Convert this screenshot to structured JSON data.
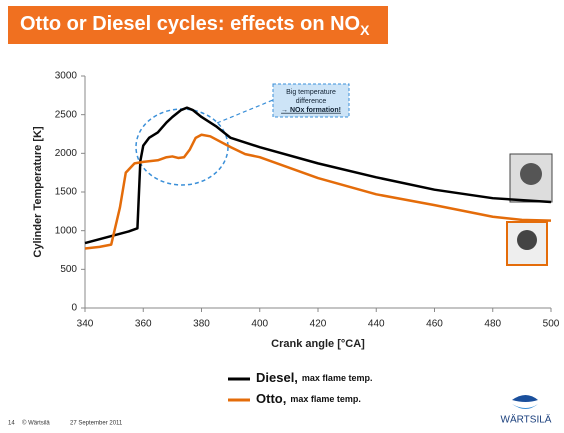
{
  "chart_data": {
    "type": "line",
    "title": "Otto or Diesel cycles: effects on NO",
    "title_subscript": "X",
    "xlabel": "Crank angle [°CA]",
    "ylabel": "Cylinder Temperature [K]",
    "xlim": [
      340,
      500
    ],
    "ylim": [
      0,
      3000
    ],
    "xticks": [
      340,
      360,
      380,
      400,
      420,
      440,
      460,
      480,
      500
    ],
    "yticks": [
      0,
      500,
      1000,
      1500,
      2000,
      2500,
      3000
    ],
    "grid": false,
    "series": [
      {
        "name": "Diesel,",
        "note": "max flame temp.",
        "color": "#000000",
        "x": [
          340,
          345,
          350,
          355,
          358,
          359,
          360,
          362,
          365,
          368,
          370,
          373,
          375,
          377,
          380,
          385,
          390,
          400,
          420,
          440,
          460,
          480,
          500
        ],
        "values": [
          840,
          890,
          940,
          990,
          1030,
          1900,
          2100,
          2200,
          2270,
          2400,
          2470,
          2560,
          2590,
          2560,
          2470,
          2350,
          2200,
          2080,
          1870,
          1690,
          1530,
          1420,
          1370
        ]
      },
      {
        "name": "Otto,",
        "note": "max flame temp.",
        "color": "#e46c0a",
        "x": [
          340,
          345,
          349,
          352,
          354,
          357,
          360,
          365,
          368,
          370,
          372,
          374,
          376,
          378,
          380,
          383,
          390,
          395,
          400,
          420,
          440,
          460,
          480,
          490,
          500
        ],
        "values": [
          770,
          790,
          820,
          1300,
          1750,
          1870,
          1890,
          1910,
          1950,
          1960,
          1940,
          1950,
          2050,
          2200,
          2240,
          2220,
          2080,
          1990,
          1950,
          1680,
          1470,
          1330,
          1180,
          1140,
          1130
        ]
      }
    ],
    "annotation": {
      "lines": [
        "Big temperature",
        "difference",
        "→ NOx formation!"
      ]
    }
  },
  "footer": {
    "page": "14",
    "copyright": "© Wärtsilä",
    "date": "27 September 2011",
    "logo": "WÄRTSILÄ"
  }
}
